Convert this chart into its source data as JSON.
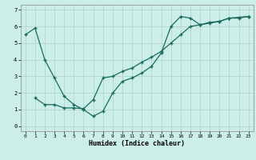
{
  "xlabel": "Humidex (Indice chaleur)",
  "bg_color": "#cceee8",
  "line_color": "#1a6b5e",
  "grid_color": "#b8d8d4",
  "xlim": [
    -0.5,
    23.5
  ],
  "ylim": [
    -0.3,
    7.3
  ],
  "xticks": [
    0,
    1,
    2,
    3,
    4,
    5,
    6,
    7,
    8,
    9,
    10,
    11,
    12,
    13,
    14,
    15,
    16,
    17,
    18,
    19,
    20,
    21,
    22,
    23
  ],
  "yticks": [
    0,
    1,
    2,
    3,
    4,
    5,
    6,
    7
  ],
  "series1_x": [
    0,
    1,
    2,
    3,
    4,
    5,
    6,
    7,
    8,
    9,
    10,
    11,
    12,
    13,
    14,
    15,
    16,
    17,
    18,
    19,
    20,
    21,
    22,
    23
  ],
  "series1_y": [
    5.5,
    5.9,
    4.0,
    2.9,
    1.8,
    1.3,
    1.0,
    0.6,
    0.9,
    2.0,
    2.7,
    2.9,
    3.2,
    3.6,
    4.4,
    6.0,
    6.6,
    6.5,
    6.1,
    6.2,
    6.3,
    6.5,
    6.55,
    6.6
  ],
  "series2_x": [
    1,
    2,
    3,
    4,
    5,
    6,
    7,
    8,
    9,
    10,
    11,
    12,
    13,
    14,
    15,
    16,
    17,
    18,
    19,
    20,
    21,
    22,
    23
  ],
  "series2_y": [
    1.7,
    1.3,
    1.3,
    1.1,
    1.1,
    1.05,
    1.6,
    2.9,
    3.0,
    3.3,
    3.5,
    3.85,
    4.15,
    4.5,
    5.0,
    5.5,
    6.0,
    6.1,
    6.25,
    6.3,
    6.5,
    6.5,
    6.6
  ]
}
